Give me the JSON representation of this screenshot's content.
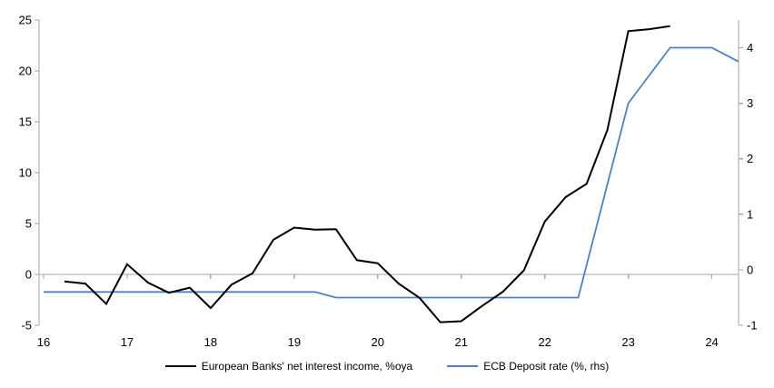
{
  "chart_data": {
    "type": "line",
    "title": "",
    "x_axis": {
      "min": 16,
      "max": 24.32,
      "tick_values": [
        16,
        17,
        18,
        19,
        20,
        21,
        22,
        23,
        24
      ],
      "tick_labels": [
        "16",
        "17",
        "18",
        "19",
        "20",
        "21",
        "22",
        "23",
        "24"
      ]
    },
    "left_axis": {
      "min": -5,
      "max": 25,
      "tick_values": [
        25,
        20,
        15,
        10,
        5,
        0,
        -5
      ],
      "tick_labels": [
        "25",
        "20",
        "15",
        "10",
        "5",
        "0",
        "-5"
      ]
    },
    "right_axis": {
      "min": -1,
      "max": 4.5,
      "tick_values": [
        4,
        3,
        2,
        1,
        0,
        -1
      ],
      "tick_labels": [
        "4",
        "3",
        "2",
        "1",
        "0",
        "-1"
      ]
    },
    "zero_line_value": 0,
    "grid": "off",
    "legend_position": "bottom-center",
    "series": [
      {
        "name": "European Banks' net interest income, %oya",
        "axis": "left",
        "color": "#000000",
        "stroke_width": 2,
        "points": [
          [
            16.25,
            -0.7
          ],
          [
            16.5,
            -0.9
          ],
          [
            16.75,
            -2.9
          ],
          [
            17.0,
            1.0
          ],
          [
            17.25,
            -0.8
          ],
          [
            17.5,
            -1.8
          ],
          [
            17.75,
            -1.3
          ],
          [
            18.0,
            -3.3
          ],
          [
            18.25,
            -1.0
          ],
          [
            18.5,
            0.1
          ],
          [
            18.75,
            3.4
          ],
          [
            19.0,
            4.6
          ],
          [
            19.25,
            4.4
          ],
          [
            19.5,
            4.45
          ],
          [
            19.75,
            1.4
          ],
          [
            20.0,
            1.1
          ],
          [
            20.25,
            -0.9
          ],
          [
            20.5,
            -2.3
          ],
          [
            20.75,
            -4.7
          ],
          [
            21.0,
            -4.6
          ],
          [
            21.25,
            -3.1
          ],
          [
            21.5,
            -1.7
          ],
          [
            21.75,
            0.4
          ],
          [
            22.0,
            5.2
          ],
          [
            22.25,
            7.6
          ],
          [
            22.5,
            8.9
          ],
          [
            22.75,
            14.2
          ],
          [
            23.0,
            23.9
          ],
          [
            23.25,
            24.1
          ],
          [
            23.5,
            24.4
          ]
        ]
      },
      {
        "name": "ECB Deposit rate (%, rhs)",
        "axis": "right",
        "color": "#4f81bd",
        "stroke_width": 1.8,
        "points": [
          [
            16.0,
            -0.4
          ],
          [
            19.25,
            -0.4
          ],
          [
            19.5,
            -0.5
          ],
          [
            22.4,
            -0.5
          ],
          [
            23.0,
            3.0
          ],
          [
            23.5,
            4.0
          ],
          [
            24.0,
            4.0
          ],
          [
            24.32,
            3.75
          ]
        ]
      }
    ],
    "legend": [
      {
        "label": "European Banks' net interest income, %oya",
        "color": "#000000"
      },
      {
        "label": "ECB Deposit rate (%, rhs)",
        "color": "#4f81bd"
      }
    ],
    "colors": {
      "axis": "#a6a6a6",
      "background": "#ffffff",
      "tick_text": "#000000"
    }
  }
}
